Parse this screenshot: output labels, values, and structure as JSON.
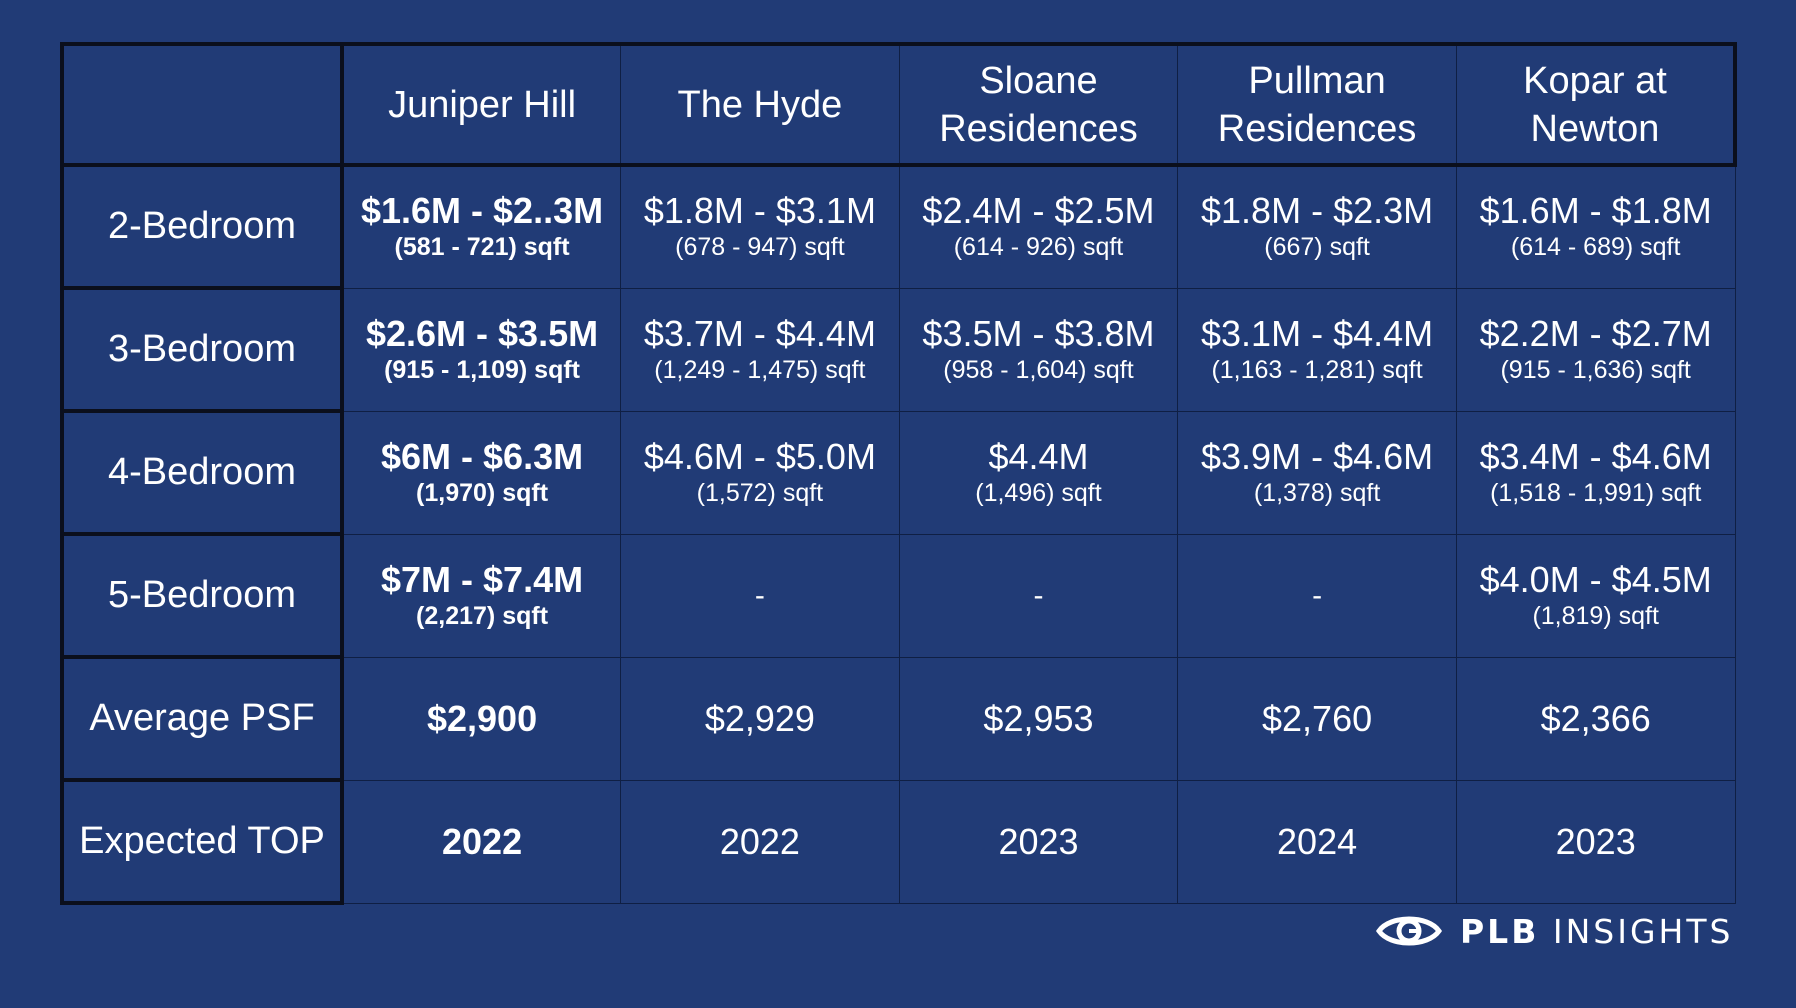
{
  "table": {
    "corner": "",
    "columns": [
      [
        "Juniper Hill"
      ],
      [
        "The Hyde"
      ],
      [
        "Sloane",
        "Residences"
      ],
      [
        "Pullman",
        "Residences"
      ],
      [
        "Kopar at",
        "Newton"
      ]
    ],
    "rows": [
      {
        "label": "2-Bedroom",
        "cells": [
          {
            "price": "$1.6M - $2..3M",
            "size": "(581 - 721) sqft",
            "bold": true
          },
          {
            "price": "$1.8M - $3.1M",
            "size": "(678 - 947) sqft"
          },
          {
            "price": "$2.4M - $2.5M",
            "size": "(614 - 926) sqft"
          },
          {
            "price": "$1.8M - $2.3M",
            "size": "(667) sqft"
          },
          {
            "price": "$1.6M - $1.8M",
            "size": "(614 - 689) sqft"
          }
        ]
      },
      {
        "label": "3-Bedroom",
        "cells": [
          {
            "price": "$2.6M - $3.5M",
            "size": "(915 - 1,109) sqft",
            "bold": true
          },
          {
            "price": "$3.7M - $4.4M",
            "size": "(1,249 - 1,475) sqft"
          },
          {
            "price": "$3.5M - $3.8M",
            "size": "(958 - 1,604) sqft"
          },
          {
            "price": "$3.1M - $4.4M",
            "size": "(1,163 - 1,281) sqft"
          },
          {
            "price": "$2.2M - $2.7M",
            "size": "(915 - 1,636) sqft"
          }
        ]
      },
      {
        "label": "4-Bedroom",
        "cells": [
          {
            "price": "$6M - $6.3M",
            "size": "(1,970) sqft",
            "bold": true
          },
          {
            "price": "$4.6M - $5.0M",
            "size": "(1,572) sqft"
          },
          {
            "price": "$4.4M",
            "size": "(1,496) sqft"
          },
          {
            "price": "$3.9M - $4.6M",
            "size": "(1,378) sqft"
          },
          {
            "price": "$3.4M - $4.6M",
            "size": "(1,518 - 1,991) sqft"
          }
        ]
      },
      {
        "label": "5-Bedroom",
        "cells": [
          {
            "price": "$7M - $7.4M",
            "size": "(2,217) sqft",
            "bold": true
          },
          {
            "value": "-"
          },
          {
            "value": "-"
          },
          {
            "value": "-"
          },
          {
            "price": "$4.0M - $4.5M",
            "size": "(1,819) sqft"
          }
        ]
      },
      {
        "label": "Average PSF",
        "cells": [
          {
            "value": "$2,900",
            "bold": true
          },
          {
            "value": "$2,929"
          },
          {
            "value": "$2,953"
          },
          {
            "value": "$2,760"
          },
          {
            "value": "$2,366"
          }
        ]
      },
      {
        "label": "Expected TOP",
        "cells": [
          {
            "value": "2022",
            "bold": true
          },
          {
            "value": "2022"
          },
          {
            "value": "2023"
          },
          {
            "value": "2024"
          },
          {
            "value": "2023"
          }
        ]
      }
    ]
  },
  "logo": {
    "icon": "eye-icon",
    "bold_text": "PLB",
    "light_text": "INSIGHTS"
  },
  "colors": {
    "background": "#213b76",
    "border": "#0b0f1c",
    "text": "#ffffff"
  }
}
